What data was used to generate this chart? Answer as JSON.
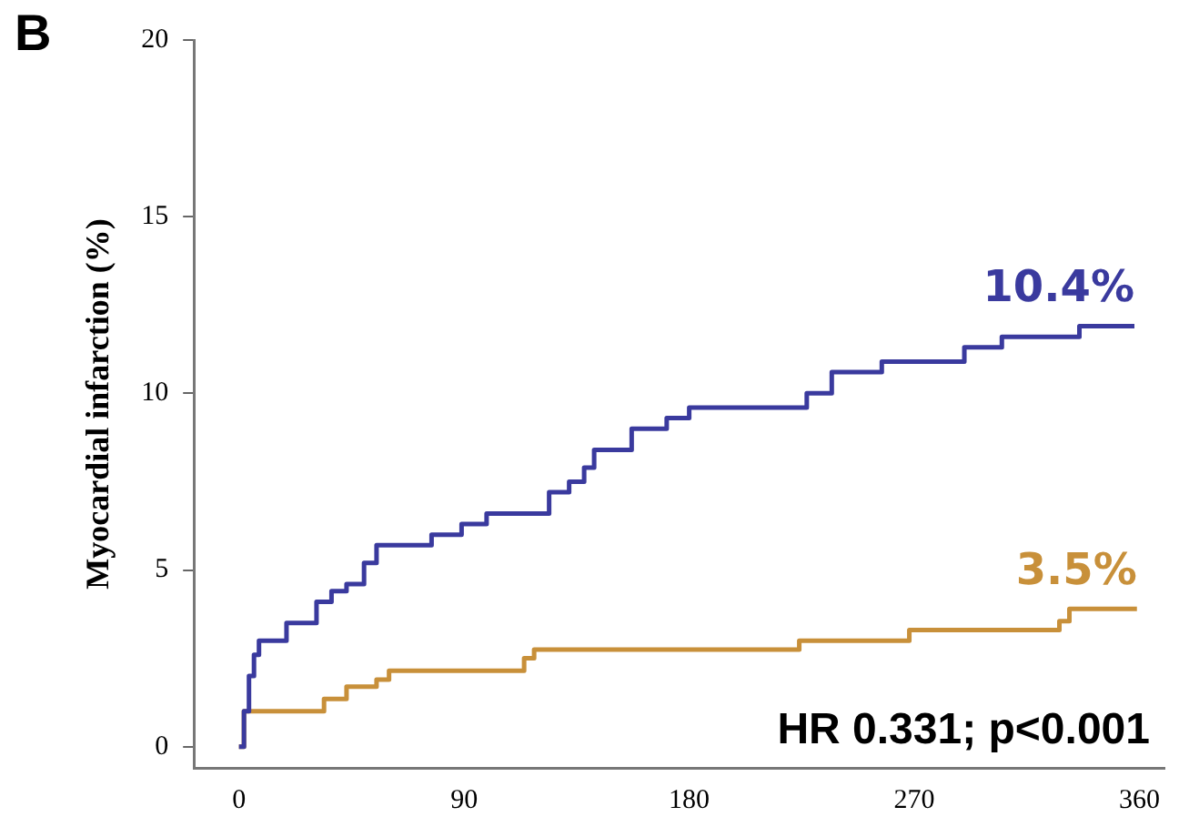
{
  "chart_data": {
    "type": "step",
    "ylabel": "Myocardial infarction (%)",
    "xlim": [
      -18,
      370
    ],
    "xticks": [
      0,
      90,
      180,
      270,
      360
    ],
    "ylim": [
      -0.6,
      20
    ],
    "yticks": [
      0,
      5,
      10,
      15,
      20
    ],
    "grid": false,
    "legend": false,
    "marker": "none",
    "line_style": "solid",
    "series": [
      {
        "color": "#3a3a9e",
        "x": [
          0,
          2,
          4,
          6,
          8,
          19,
          31,
          37,
          43,
          50,
          55,
          77,
          89,
          99,
          124,
          132,
          138,
          142,
          157,
          171,
          180,
          227,
          237,
          257,
          290,
          305,
          336,
          358
        ],
        "values": [
          0,
          1.0,
          2.0,
          2.6,
          3.0,
          3.5,
          4.1,
          4.4,
          4.6,
          5.2,
          5.7,
          6.0,
          6.3,
          6.6,
          7.2,
          7.5,
          7.9,
          8.4,
          9.0,
          9.3,
          9.6,
          10.0,
          10.6,
          10.9,
          11.3,
          11.6,
          11.9,
          11.9
        ]
      },
      {
        "color": "#c8903a",
        "x": [
          0,
          2,
          34,
          43,
          55,
          60,
          114,
          118,
          224,
          268,
          328,
          332,
          359
        ],
        "values": [
          0,
          1.0,
          1.35,
          1.7,
          1.9,
          2.15,
          2.5,
          2.75,
          3.0,
          3.3,
          3.55,
          3.9,
          3.9
        ]
      }
    ],
    "annotations": [
      "10.4%",
      "3.5%",
      "HR 0.331; p<0.001",
      "B"
    ]
  }
}
